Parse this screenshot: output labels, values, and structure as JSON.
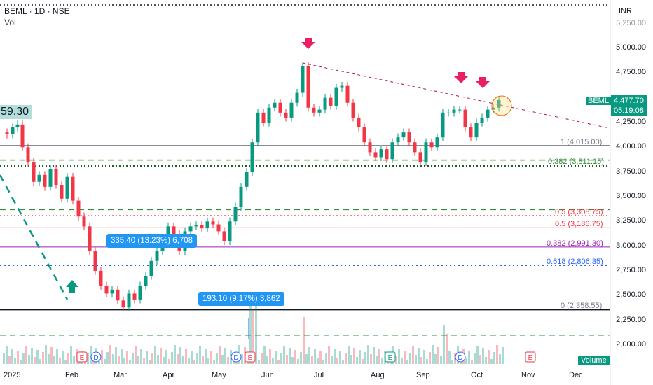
{
  "header": {
    "symbol_line": "BEML · 1D · NSE",
    "indicator": "Vol"
  },
  "currency": "INR",
  "left_price_badge": "59.30",
  "last_price": {
    "ticker": "BEML",
    "price": "4,477.70",
    "countdown": "05:19:08"
  },
  "price_axis_labels": [
    "5,000.00",
    "4,750.00",
    "4,250.00",
    "4,000.00",
    "3,750.00",
    "3,500.00",
    "3,250.00",
    "3,000.00",
    "2,750.00",
    "2,500.00",
    "2,250.00",
    "2,000.00"
  ],
  "price_axis_partial": "5,250.00",
  "date_axis_labels": [
    "2025",
    "Feb",
    "Mar",
    "Apr",
    "May",
    "Jun",
    "Jul",
    "Aug",
    "Sep",
    "Oct",
    "Nov",
    "Dec"
  ],
  "fib_levels": [
    {
      "label": "1 (4,015.00)",
      "color": "#787b86"
    },
    {
      "label": "0.382 (3,811.15)",
      "color": "#388e3c"
    },
    {
      "label": "0.5 (3,308.75)",
      "color": "#f23645"
    },
    {
      "label": "0.5 (3,186.75)",
      "color": "#f23645"
    },
    {
      "label": "0.382 (2,991.30)",
      "color": "#9c27b0"
    },
    {
      "label": "0.618 (2,806.35)",
      "color": "#2962ff"
    },
    {
      "label": "0 (2,358.55)",
      "color": "#787b86"
    }
  ],
  "measure_labels": [
    "335.40 (13.23%) 6,708",
    "193.10 (9.17%) 3,862"
  ],
  "volume_button": "Volume",
  "event_markers": [
    "E",
    "D",
    "D",
    "E",
    "E",
    "D",
    "E"
  ],
  "colors": {
    "up": "#089981",
    "down": "#f23645",
    "accent_blue": "#2962ff",
    "arrow": "#e91e63"
  },
  "chart_data": {
    "type": "candlestick",
    "title": "BEML · 1D · NSE",
    "ylim": [
      2000,
      5300
    ],
    "x": [
      "2025-01",
      "2025-02",
      "2025-03",
      "2025-04",
      "2025-05",
      "2025-06",
      "2025-07",
      "2025-08",
      "2025-09",
      "2025-10"
    ],
    "series": [
      {
        "values": [
          4150,
          3750,
          2600,
          2850,
          3700,
          4650,
          4350,
          3950,
          4200,
          4477.7
        ]
      }
    ],
    "fibonacci": [
      4015.0,
      3811.15,
      3308.75,
      3186.75,
      2991.3,
      2806.35,
      2358.55
    ],
    "last": 4477.7
  }
}
